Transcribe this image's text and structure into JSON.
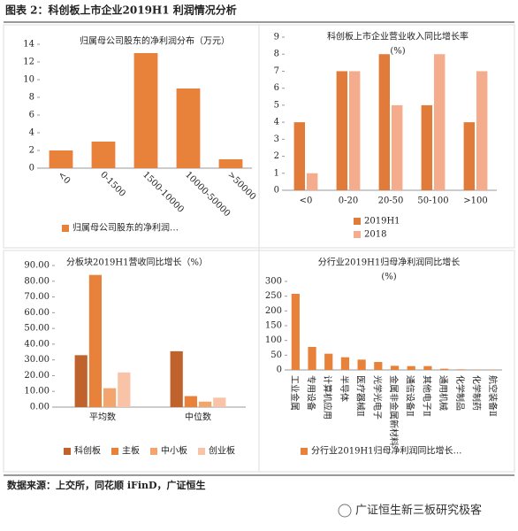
{
  "header": {
    "title": "图表 2：科创板上市企业2019H1 利润情况分析"
  },
  "chart_data": [
    {
      "type": "bar",
      "title": "归属母公司股东的净利润分布（万元）",
      "categories": [
        "<0",
        "0-1500",
        "1500-10000",
        "10000-50000",
        ">50000"
      ],
      "values": [
        2,
        3,
        13,
        9,
        1
      ],
      "color": "#e8823a",
      "legend": "归属母公司股东的净利润…",
      "ylim": [
        0,
        14
      ],
      "yticks": [
        0,
        2,
        4,
        6,
        8,
        10,
        12,
        14
      ],
      "grid": false
    },
    {
      "type": "bar",
      "title": "科创板上市企业营业收入同比增长率",
      "subtitle": "(%)",
      "categories": [
        "<0",
        "0-20",
        "20-50",
        "50-100",
        ">100"
      ],
      "series": [
        {
          "name": "2019H1",
          "color": "#e07b39",
          "values": [
            4,
            7,
            8,
            5,
            4
          ]
        },
        {
          "name": "2018",
          "color": "#f4ac8c",
          "values": [
            1,
            7,
            5,
            8,
            7
          ]
        }
      ],
      "ylim": [
        0,
        9
      ],
      "yticks": [
        0,
        1,
        2,
        3,
        4,
        5,
        6,
        7,
        8,
        9
      ],
      "grid": false
    },
    {
      "type": "bar",
      "title": "分板块2019H1营收同比增长（%）",
      "categories": [
        "平均数",
        "中位数"
      ],
      "series": [
        {
          "name": "科创板",
          "color": "#c0622b",
          "values": [
            33,
            35.5
          ]
        },
        {
          "name": "主板",
          "color": "#e8823a",
          "values": [
            84,
            7
          ]
        },
        {
          "name": "中小板",
          "color": "#f2a66e",
          "values": [
            12,
            3.5
          ]
        },
        {
          "name": "创业板",
          "color": "#f8c3a6",
          "values": [
            22,
            6
          ]
        }
      ],
      "ylim": [
        0,
        90
      ],
      "yticks": [
        {
          "value": 0,
          "label": "0.00"
        },
        {
          "value": 10,
          "label": "10.00"
        },
        {
          "value": 20,
          "label": "20.00"
        },
        {
          "value": 30,
          "label": "30.00"
        },
        {
          "value": 40,
          "label": "40.00"
        },
        {
          "value": 50,
          "label": "50.00"
        },
        {
          "value": 60,
          "label": "60.00"
        },
        {
          "value": 70,
          "label": "70.00"
        },
        {
          "value": 80,
          "label": "80.00"
        },
        {
          "value": 90,
          "label": "90.00"
        }
      ],
      "grid": false
    },
    {
      "type": "bar",
      "title": "分行业2019H1归母净利润同比增长",
      "subtitle": "(%)",
      "categories": [
        "工业金属",
        "专用设备",
        "计算机应用",
        "半导体",
        "医疗器械Ⅱ",
        "光学光电子",
        "金属非金属新材料",
        "通信设备Ⅱ",
        "其他电子Ⅱ",
        "通用机械",
        "化学制品",
        "化学制药",
        "航空装备Ⅱ"
      ],
      "values": [
        258,
        78,
        55,
        43,
        35,
        27,
        14,
        13,
        13,
        4,
        2,
        1,
        1
      ],
      "color": "#e8823a",
      "legend": "分行业2019H1归母净利润同比增长…",
      "ylim": [
        0,
        300
      ],
      "yticks": [
        0,
        50,
        100,
        150,
        200,
        250,
        300
      ],
      "grid": false
    }
  ],
  "footer": {
    "source": "数据来源：上交所，同花顺 iFinD，广证恒生",
    "watermark": "广证恒生新三板研究极客"
  }
}
